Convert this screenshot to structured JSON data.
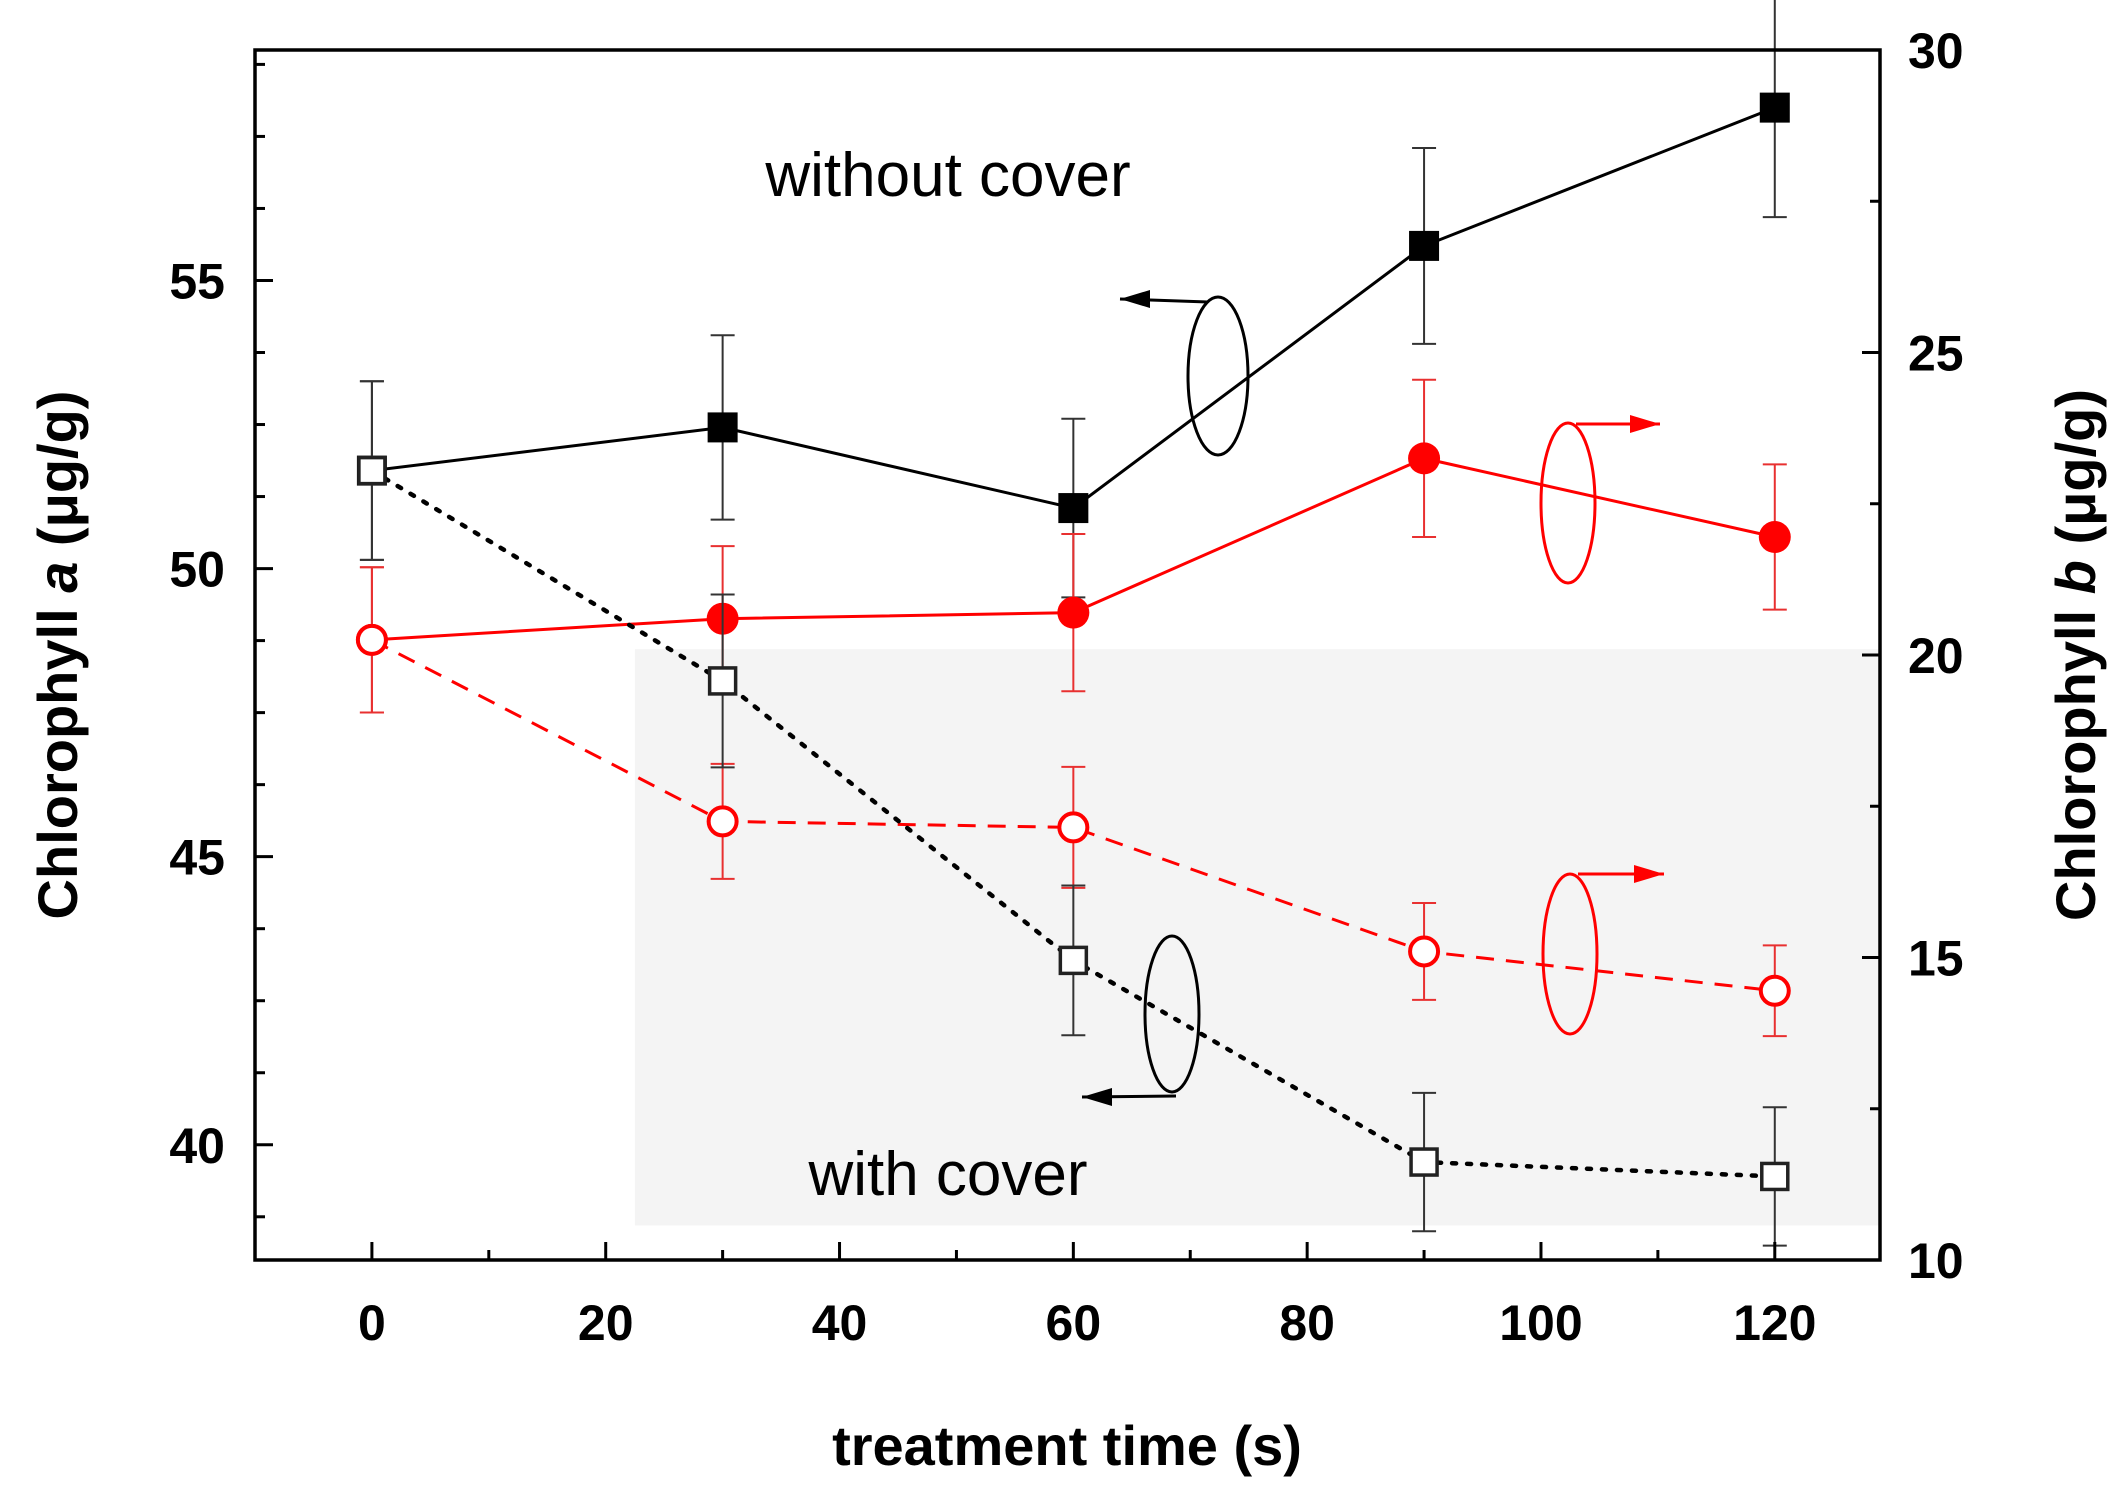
{
  "chart_data": {
    "type": "line",
    "xlabel": "treatment time (s)",
    "ylabel_left": {
      "prefix": "Chlorophyll ",
      "italic": "a",
      "suffix": " (μg/g)"
    },
    "ylabel_right": {
      "prefix": "Chlorophyll ",
      "italic": "b",
      "suffix": " (μg/g)"
    },
    "xlim": [
      -10,
      129
    ],
    "ylim_left": [
      38.0,
      59.0
    ],
    "ylim_right": [
      10,
      30
    ],
    "x_ticks": [
      0,
      20,
      40,
      60,
      80,
      100,
      120
    ],
    "x_tick_labels": [
      "0",
      "20",
      "40",
      "60",
      "80",
      "100",
      "120"
    ],
    "y_left_ticks": [
      40,
      45,
      50,
      55
    ],
    "y_left_tick_labels": [
      "40",
      "45",
      "50",
      "55"
    ],
    "y_right_ticks": [
      10,
      15,
      20,
      25,
      30
    ],
    "y_right_tick_labels": [
      "10",
      "15",
      "20",
      "25",
      "30"
    ],
    "series": [
      {
        "name": "Chlorophyll a without cover",
        "axis": "left",
        "color": "#000000",
        "marker": "square-filled",
        "line": "solid",
        "x": [
          0,
          30,
          60,
          90,
          120
        ],
        "y": [
          51.7,
          52.45,
          51.05,
          55.6,
          58.0
        ],
        "err": [
          1.55,
          1.6,
          1.55,
          1.7,
          1.9
        ]
      },
      {
        "name": "Chlorophyll b without cover",
        "axis": "right",
        "color": "#ff0000",
        "marker": "circle-filled",
        "line": "solid",
        "x": [
          0,
          30,
          60,
          90,
          120
        ],
        "y": [
          20.25,
          20.6,
          20.7,
          23.25,
          21.95
        ],
        "err": [
          1.2,
          1.2,
          1.3,
          1.3,
          1.2
        ]
      },
      {
        "name": "Chlorophyll b with cover",
        "axis": "right",
        "color": "#ff0000",
        "marker": "circle-open",
        "line": "dashed",
        "x": [
          0,
          30,
          60,
          90,
          120
        ],
        "y": [
          20.25,
          17.25,
          17.15,
          15.1,
          14.45
        ],
        "err": [
          1.2,
          0.95,
          1.0,
          0.8,
          0.75
        ]
      },
      {
        "name": "Chlorophyll a with cover",
        "axis": "left",
        "color": "#000000",
        "marker": "square-open",
        "line": "dotted",
        "x": [
          0,
          30,
          60,
          90,
          120
        ],
        "y": [
          51.7,
          48.05,
          43.2,
          39.7,
          39.45
        ],
        "err": [
          1.55,
          1.5,
          1.3,
          1.2,
          1.2
        ]
      }
    ],
    "annotations": [
      "without cover",
      "with cover"
    ],
    "shaded_region": {
      "x": [
        22.5,
        129
      ],
      "y_left": [
        38.6,
        48.6
      ],
      "color": "#f4f4f4"
    }
  }
}
